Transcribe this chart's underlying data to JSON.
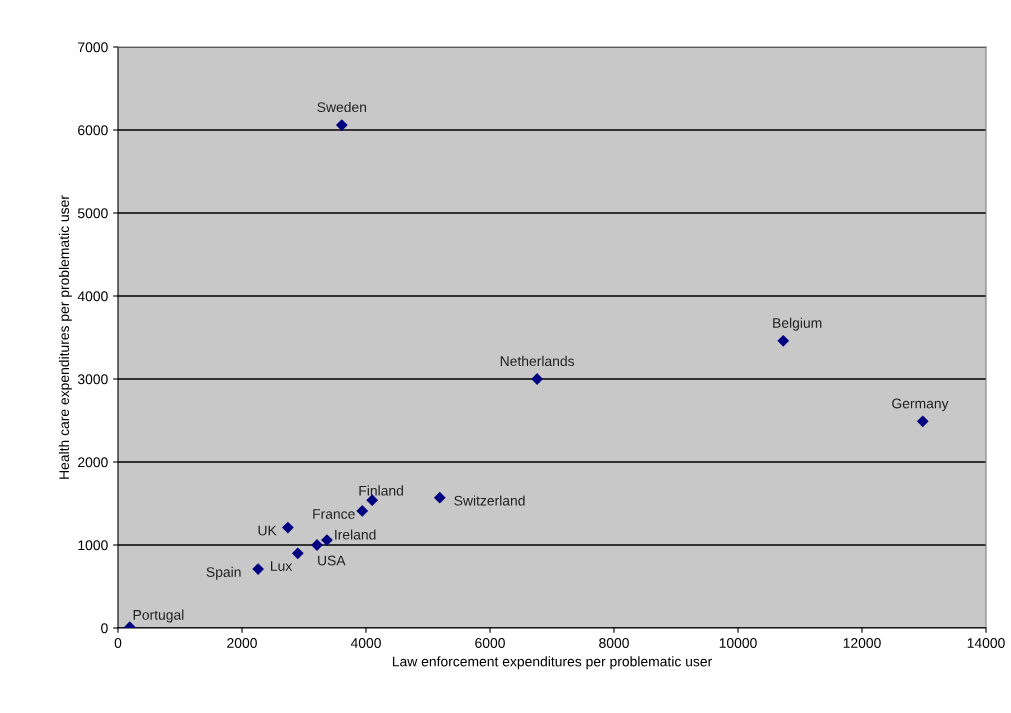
{
  "chart_data": {
    "type": "scatter",
    "xlabel": "Law enforcement expenditures per problematic user",
    "ylabel": "Health care expenditures per problematic user",
    "x": [
      3610,
      6760,
      10730,
      12980,
      5190,
      4100,
      3940,
      2740,
      3370,
      3210,
      2900,
      2260,
      190
    ],
    "series": [
      {
        "color": "#000080",
        "values": [
          6060,
          3000,
          3460,
          2490,
          1570,
          1540,
          1410,
          1210,
          1060,
          1000,
          900,
          710,
          10
        ]
      }
    ],
    "annotations": [
      {
        "text": "Sweden",
        "x": 3610,
        "y": 6060
      },
      {
        "text": "Netherlands",
        "x": 6760,
        "y": 3000
      },
      {
        "text": "Belgium",
        "x": 10730,
        "y": 3460
      },
      {
        "text": "Germany",
        "x": 12980,
        "y": 2490
      },
      {
        "text": "Switzerland",
        "x": 5190,
        "y": 1570
      },
      {
        "text": "Finland",
        "x": 4100,
        "y": 1540
      },
      {
        "text": "France",
        "x": 3940,
        "y": 1410
      },
      {
        "text": "UK",
        "x": 2740,
        "y": 1210
      },
      {
        "text": "Ireland",
        "x": 3370,
        "y": 1060
      },
      {
        "text": "USA",
        "x": 3210,
        "y": 1000
      },
      {
        "text": "Lux",
        "x": 2900,
        "y": 900
      },
      {
        "text": "Spain",
        "x": 2260,
        "y": 710
      },
      {
        "text": "Portugal",
        "x": 190,
        "y": 10
      }
    ],
    "xlim": [
      0,
      14000
    ],
    "xticks": [
      0,
      2000,
      4000,
      6000,
      8000,
      10000,
      12000,
      14000
    ],
    "ylim": [
      0,
      7000
    ],
    "yticks": [
      0,
      1000,
      2000,
      3000,
      4000,
      5000,
      6000,
      7000
    ],
    "grid": "y",
    "marker": "diamond",
    "legend": false
  }
}
